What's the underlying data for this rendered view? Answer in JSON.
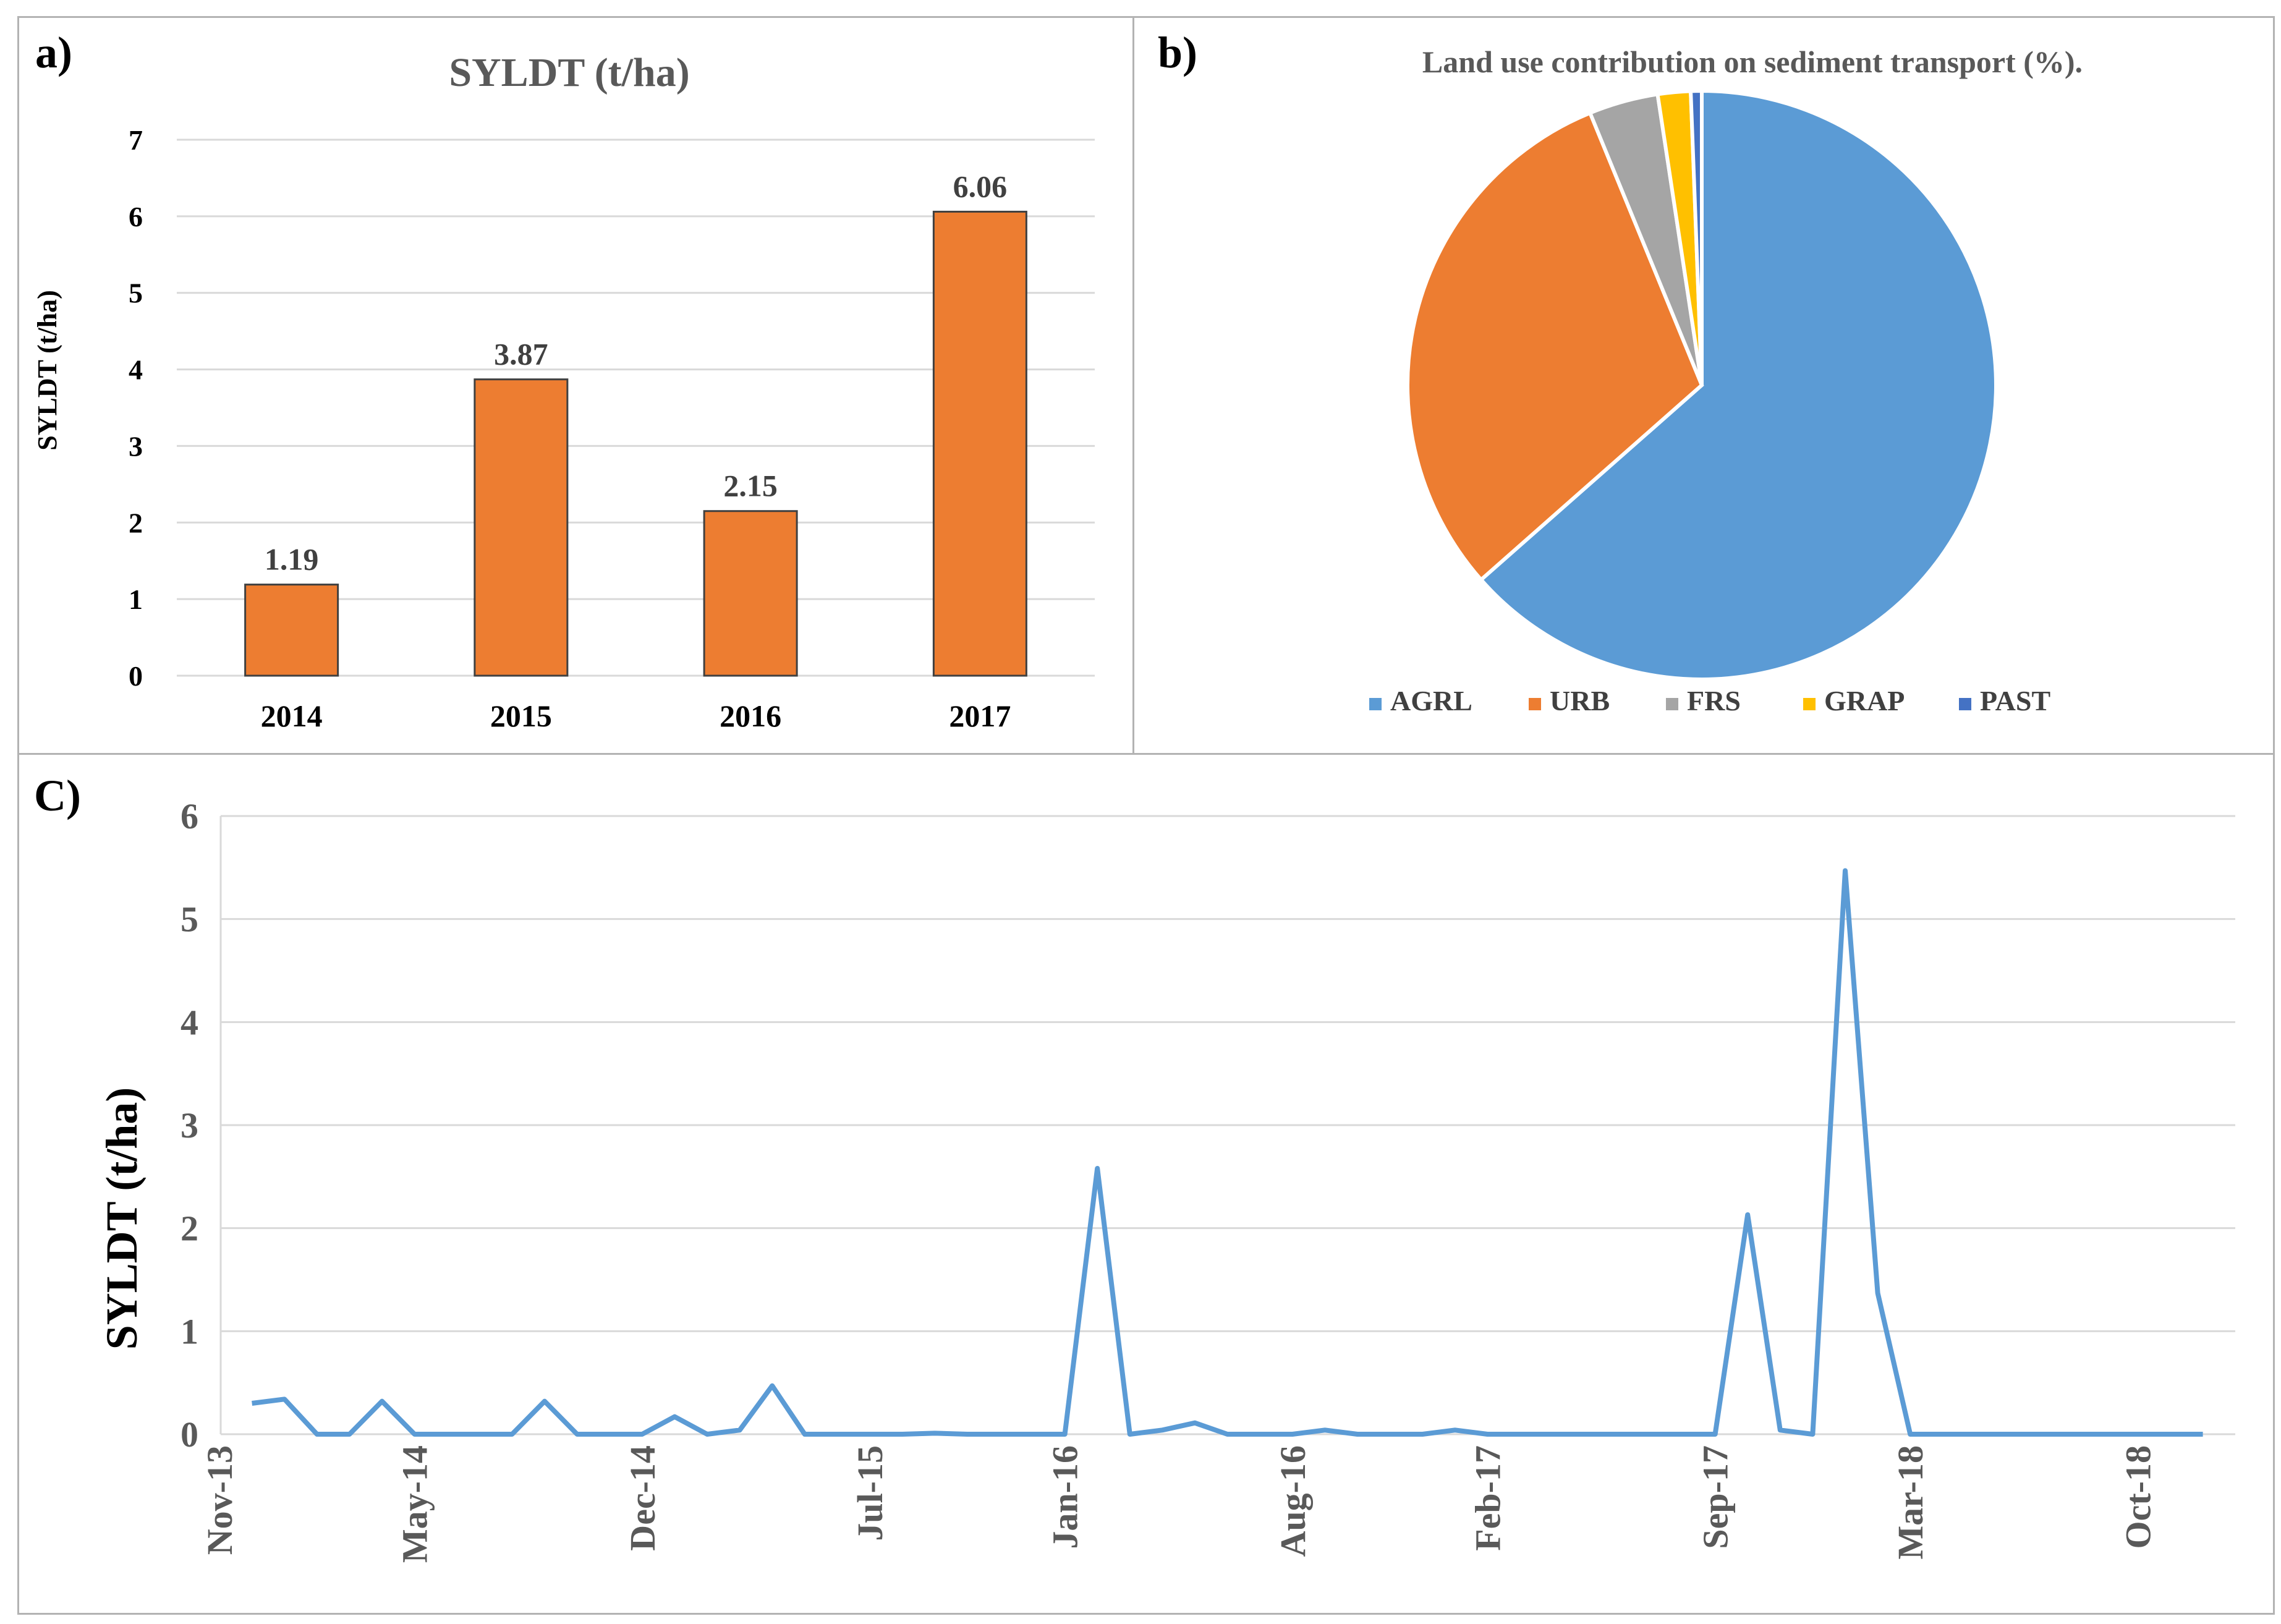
{
  "panel_a": {
    "letter": "a)",
    "chart_data": {
      "type": "bar",
      "title": "SYLDT (t/ha)",
      "ylabel": "SYLDT (t/ha)",
      "categories": [
        "2014",
        "2015",
        "2016",
        "2017"
      ],
      "values": [
        1.19,
        3.87,
        2.15,
        6.06
      ],
      "value_labels": [
        "1.19",
        "3.87",
        "2.15",
        "6.06"
      ],
      "ylim": [
        0,
        7
      ],
      "yticks": [
        "0",
        "1",
        "2",
        "3",
        "4",
        "5",
        "6",
        "7"
      ],
      "grid": true,
      "bar_color": "#ED7D31"
    }
  },
  "panel_b": {
    "letter": "b)",
    "chart_data": {
      "type": "pie",
      "title": "Land use contribution on sediment transport (%).",
      "labels": [
        "AGRL",
        "URB",
        "FRS",
        "GRAP",
        "PAST"
      ],
      "values": [
        63.5,
        30.3,
        3.8,
        1.8,
        0.6
      ],
      "colors": [
        "#5B9BD5",
        "#ED7D31",
        "#A5A5A5",
        "#FFC000",
        "#4472C4"
      ],
      "legend": "bottom"
    }
  },
  "panel_c": {
    "letter": "C)",
    "chart_data": {
      "type": "line",
      "ylabel": "SYLDT (t/ha)",
      "ylim": [
        0,
        6
      ],
      "yticks": [
        "0",
        "1",
        "2",
        "3",
        "4",
        "5",
        "6"
      ],
      "xtick_labels": [
        "Nov-13",
        "May-14",
        "Dec-14",
        "Jul-15",
        "Jan-16",
        "Aug-16",
        "Feb-17",
        "Sep-17",
        "Mar-18",
        "Oct-18"
      ],
      "xtick_month_index": [
        0,
        6,
        13,
        20,
        26,
        33,
        39,
        46,
        52,
        59
      ],
      "x_month_index": [
        1,
        2,
        3,
        4,
        5,
        6,
        7,
        8,
        9,
        10,
        11,
        12,
        13,
        14,
        15,
        16,
        17,
        18,
        19,
        20,
        21,
        22,
        23,
        24,
        25,
        26,
        27,
        28,
        29,
        30,
        31,
        32,
        33,
        34,
        35,
        36,
        37,
        38,
        39,
        40,
        41,
        42,
        43,
        44,
        45,
        46,
        47,
        48,
        49,
        50,
        51,
        52,
        53,
        54,
        55,
        56,
        57,
        58,
        59,
        60,
        61
      ],
      "values": [
        0.3,
        0.34,
        0,
        0,
        0.32,
        0,
        0,
        0,
        0,
        0.32,
        0,
        0,
        0,
        0.17,
        0,
        0.04,
        0.47,
        0,
        0,
        0,
        0,
        0.01,
        0,
        0,
        0,
        0,
        2.58,
        0,
        0.04,
        0.11,
        0,
        0,
        0,
        0.04,
        0,
        0,
        0,
        0.04,
        0,
        0,
        0,
        0,
        0,
        0,
        0,
        0,
        2.13,
        0.04,
        0,
        5.47,
        1.37,
        0,
        0,
        0,
        0,
        0,
        0,
        0,
        0,
        0,
        0
      ],
      "color": "#5B9BD5",
      "grid": true
    }
  }
}
